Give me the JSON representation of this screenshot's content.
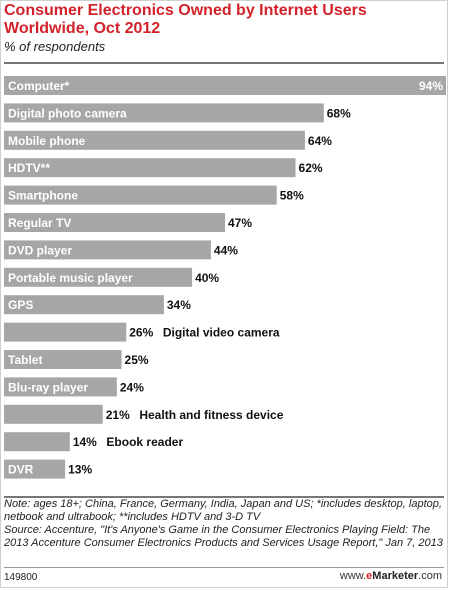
{
  "header": {
    "title": "Consumer Electronics Owned by Internet Users Worldwide, Oct 2012",
    "subtitle": "% of respondents"
  },
  "chart_data": {
    "type": "bar",
    "orientation": "horizontal",
    "categories": [
      "Computer*",
      "Digital photo camera",
      "Mobile phone",
      "HDTV**",
      "Smartphone",
      "Regular TV",
      "DVD player",
      "Portable music player",
      "GPS",
      "Digital video camera",
      "Tablet",
      "Blu-ray player",
      "Health and fitness device",
      "Ebook reader",
      "DVR"
    ],
    "values": [
      94,
      68,
      64,
      62,
      58,
      47,
      44,
      40,
      34,
      26,
      25,
      24,
      21,
      14,
      13
    ],
    "value_suffix": "%",
    "xlim": [
      0,
      94
    ],
    "bar_color": "#a6a6a6",
    "label_color_inside": "#ffffff",
    "label_color_outside": "#111111"
  },
  "footer": {
    "note": "Note: ages 18+; China, France, Germany, India, Japan and US; *includes desktop, laptop, netbook and ultrabook; **includes HDTV and 3-D TV\nSource: Accenture, \"It's Anyone's Game in the Consumer Electronics Playing Field: The 2013 Accenture Consumer Electronics Products and Services Usage Report,\" Jan 7, 2013",
    "chart_id": "149800",
    "brand_prefix": "www.",
    "brand_e": "e",
    "brand_name": "Marketer",
    "brand_suffix": ".com"
  }
}
